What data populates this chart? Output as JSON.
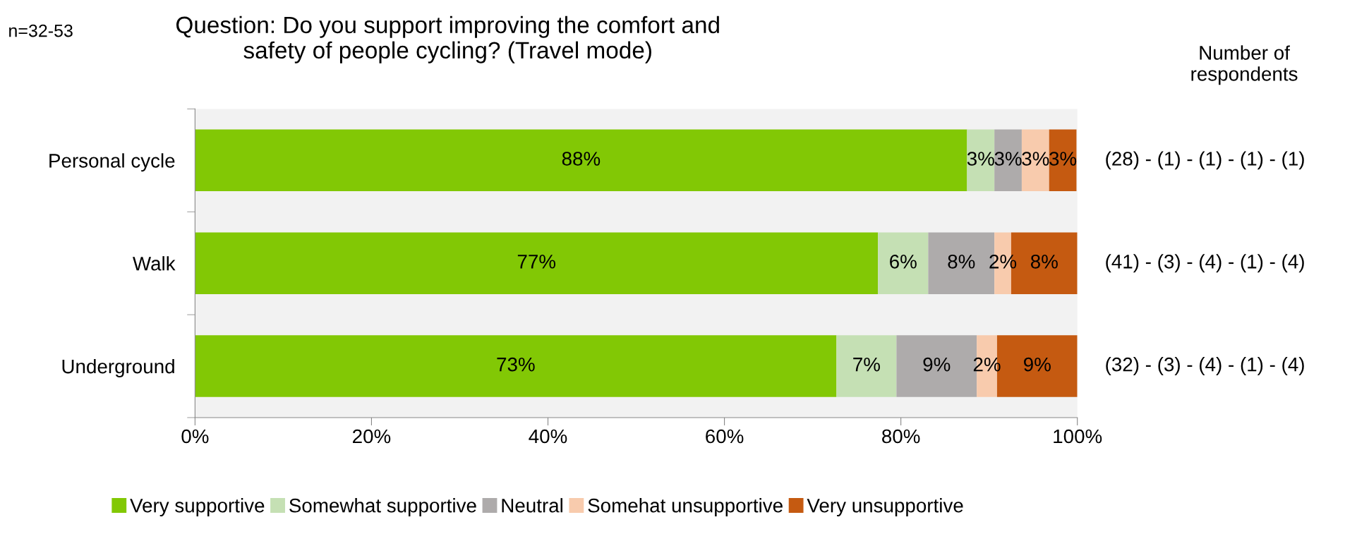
{
  "chart_data": {
    "type": "bar",
    "orientation": "horizontal",
    "stacked": true,
    "title": "Question: Do you support improving the comfort and safety of people cycling? (Travel mode)",
    "categories": [
      "Personal cycle",
      "Walk",
      "Underground"
    ],
    "series": [
      {
        "name": "Very supportive",
        "color": "#82c805",
        "values": [
          87.5,
          77.4,
          72.7
        ],
        "value_labels": [
          "88%",
          "77%",
          "73%"
        ]
      },
      {
        "name": "Somewhat supportive",
        "color": "#c5e0b4",
        "values": [
          3.1,
          5.7,
          6.8
        ],
        "value_labels": [
          "3%",
          "6%",
          "7%"
        ]
      },
      {
        "name": "Neutral",
        "color": "#aeabab",
        "values": [
          3.1,
          7.5,
          9.1
        ],
        "value_labels": [
          "3%",
          "8%",
          "9%"
        ]
      },
      {
        "name": "Somehat unsupportive",
        "color": "#f8cbad",
        "values": [
          3.1,
          1.9,
          2.3
        ],
        "value_labels": [
          "3%",
          "2%",
          "2%"
        ]
      },
      {
        "name": "Very unsupportive",
        "color": "#c55a11",
        "values": [
          3.1,
          7.5,
          9.1
        ],
        "value_labels": [
          "3%",
          "8%",
          "9%"
        ]
      }
    ],
    "xlim": [
      0,
      100
    ],
    "xticks": [
      {
        "value": 0,
        "label": "0%"
      },
      {
        "value": 20,
        "label": "20%"
      },
      {
        "value": 40,
        "label": "40%"
      },
      {
        "value": 60,
        "label": "60%"
      },
      {
        "value": 80,
        "label": "80%"
      },
      {
        "value": 100,
        "label": "100%"
      }
    ],
    "annotations": [
      "n=32-53",
      "Number of respondents",
      "(28) - (1) - (1) - (1) - (1)",
      "(41) - (3) - (4) - (1) - (4)",
      "(32) - (3) - (4) - (1) - (4)"
    ],
    "legend": "bottom",
    "grid": false
  }
}
